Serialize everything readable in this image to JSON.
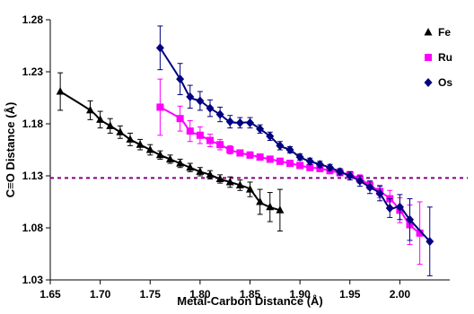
{
  "chart_data": {
    "type": "scatter",
    "title": "",
    "xlabel": "Metal-Carbon Distance (Å)",
    "ylabel": "C≡O Distance (Å)",
    "xlim": [
      1.65,
      2.05
    ],
    "ylim": [
      1.03,
      1.28
    ],
    "xticks": [
      "1.65",
      "1.70",
      "1.75",
      "1.80",
      "1.85",
      "1.90",
      "1.95",
      "2.00"
    ],
    "yticks": [
      "1.03",
      "1.08",
      "1.13",
      "1.18",
      "1.23",
      "1.28"
    ],
    "reference_line_y": 1.128,
    "grid": false,
    "legend_position": "top-right",
    "series": [
      {
        "name": "Fe",
        "marker": "triangle",
        "color": "#000000",
        "x": [
          1.66,
          1.69,
          1.7,
          1.71,
          1.72,
          1.73,
          1.74,
          1.75,
          1.76,
          1.77,
          1.78,
          1.79,
          1.8,
          1.81,
          1.82,
          1.83,
          1.84,
          1.85,
          1.86,
          1.87,
          1.88
        ],
        "y": [
          1.211,
          1.193,
          1.184,
          1.178,
          1.172,
          1.165,
          1.16,
          1.155,
          1.15,
          1.146,
          1.142,
          1.138,
          1.134,
          1.131,
          1.127,
          1.124,
          1.121,
          1.117,
          1.105,
          1.1,
          1.097
        ],
        "err": [
          0.018,
          0.009,
          0.008,
          0.007,
          0.006,
          0.006,
          0.005,
          0.005,
          0.004,
          0.004,
          0.004,
          0.004,
          0.004,
          0.004,
          0.004,
          0.005,
          0.005,
          0.007,
          0.012,
          0.014,
          0.02
        ]
      },
      {
        "name": "Ru",
        "marker": "square",
        "color": "#ff00ff",
        "x": [
          1.76,
          1.78,
          1.79,
          1.8,
          1.81,
          1.82,
          1.83,
          1.84,
          1.85,
          1.86,
          1.87,
          1.88,
          1.89,
          1.9,
          1.91,
          1.92,
          1.93,
          1.94,
          1.95,
          1.96,
          1.97,
          1.98,
          1.99,
          2.0,
          2.01,
          2.02
        ],
        "y": [
          1.196,
          1.185,
          1.173,
          1.169,
          1.164,
          1.16,
          1.155,
          1.152,
          1.15,
          1.148,
          1.146,
          1.144,
          1.142,
          1.14,
          1.138,
          1.137,
          1.135,
          1.133,
          1.131,
          1.127,
          1.121,
          1.115,
          1.108,
          1.097,
          1.083,
          1.075
        ],
        "err": [
          0.027,
          0.012,
          0.01,
          0.008,
          0.006,
          0.005,
          0.004,
          0.003,
          0.003,
          0.003,
          0.003,
          0.003,
          0.003,
          0.003,
          0.003,
          0.003,
          0.003,
          0.003,
          0.003,
          0.004,
          0.004,
          0.006,
          0.008,
          0.012,
          0.019,
          0.03
        ]
      },
      {
        "name": "Os",
        "marker": "diamond",
        "color": "#000080",
        "x": [
          1.76,
          1.78,
          1.79,
          1.8,
          1.81,
          1.82,
          1.83,
          1.84,
          1.85,
          1.86,
          1.87,
          1.88,
          1.89,
          1.9,
          1.91,
          1.92,
          1.93,
          1.94,
          1.95,
          1.96,
          1.97,
          1.98,
          1.99,
          2.0,
          2.01,
          2.03
        ],
        "y": [
          1.253,
          1.223,
          1.206,
          1.202,
          1.195,
          1.189,
          1.182,
          1.181,
          1.181,
          1.175,
          1.168,
          1.159,
          1.155,
          1.148,
          1.144,
          1.141,
          1.138,
          1.134,
          1.13,
          1.125,
          1.119,
          1.113,
          1.099,
          1.1,
          1.088,
          1.067
        ],
        "err": [
          0.021,
          0.015,
          0.011,
          0.009,
          0.008,
          0.007,
          0.006,
          0.005,
          0.005,
          0.004,
          0.004,
          0.004,
          0.003,
          0.003,
          0.003,
          0.003,
          0.003,
          0.003,
          0.004,
          0.005,
          0.006,
          0.007,
          0.009,
          0.012,
          0.02,
          0.033
        ]
      }
    ]
  }
}
